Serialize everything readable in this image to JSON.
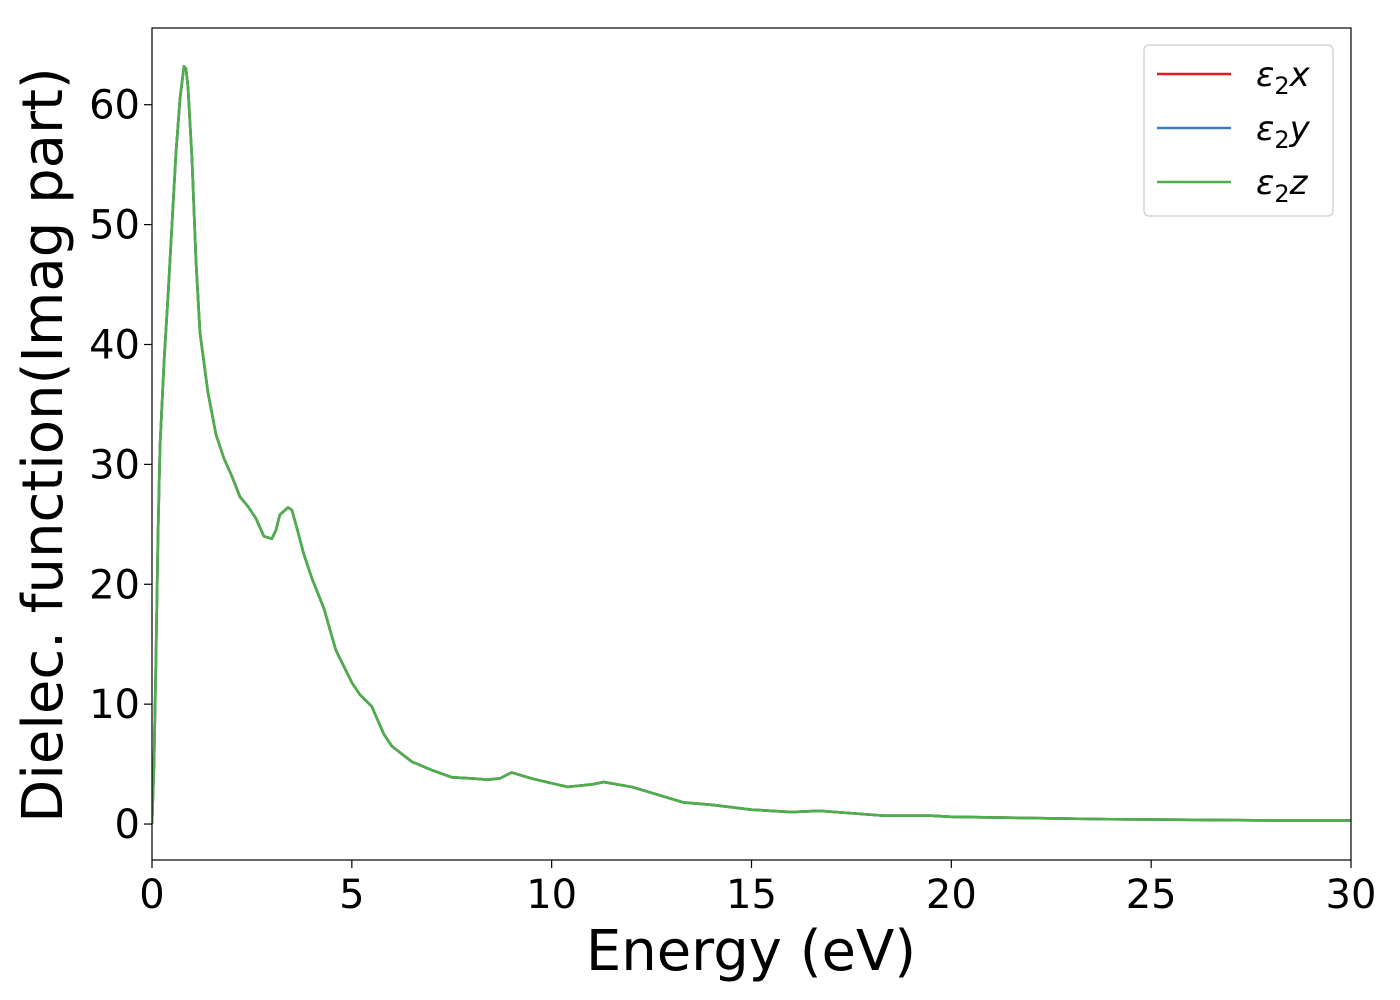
{
  "chart_data": {
    "type": "line",
    "title": "",
    "xlabel": "Energy (eV)",
    "ylabel": "Dielec. function(Imag part)",
    "xlim": [
      0,
      30
    ],
    "ylim": [
      -3,
      66.4
    ],
    "xticks": [
      0,
      5,
      10,
      15,
      20,
      25,
      30
    ],
    "yticks": [
      0,
      10,
      20,
      30,
      40,
      50,
      60
    ],
    "legend_position": "top-right",
    "grid": false,
    "x": [
      0.0,
      0.05,
      0.1,
      0.15,
      0.2,
      0.3,
      0.4,
      0.5,
      0.6,
      0.7,
      0.8,
      0.85,
      0.9,
      1.0,
      1.1,
      1.2,
      1.4,
      1.6,
      1.8,
      2.0,
      2.2,
      2.4,
      2.6,
      2.8,
      3.0,
      3.1,
      3.2,
      3.4,
      3.5,
      3.6,
      3.8,
      4.0,
      4.3,
      4.6,
      5.0,
      5.2,
      5.5,
      5.8,
      6.0,
      6.5,
      7.0,
      7.5,
      8.0,
      8.4,
      8.7,
      9.0,
      9.5,
      10.0,
      10.4,
      11.0,
      11.3,
      12.0,
      12.7,
      13.3,
      14.0,
      15.0,
      16.0,
      16.7,
      17.5,
      18.3,
      19.5,
      20.0,
      22.0,
      24.0,
      26.0,
      28.0,
      30.0
    ],
    "series": [
      {
        "name": "ε2x",
        "color": "#e41a1c",
        "values": [
          0.0,
          5.0,
          14.0,
          24.0,
          31.5,
          38.5,
          44.0,
          50.0,
          56.0,
          60.5,
          63.2,
          63.0,
          61.5,
          55.5,
          47.0,
          41.0,
          36.0,
          32.5,
          30.5,
          29.0,
          27.3,
          26.5,
          25.5,
          24.0,
          23.8,
          24.5,
          25.8,
          26.4,
          26.2,
          25.0,
          22.5,
          20.5,
          18.0,
          14.5,
          11.8,
          10.8,
          9.8,
          7.5,
          6.5,
          5.2,
          4.5,
          3.9,
          3.8,
          3.7,
          3.8,
          4.3,
          3.8,
          3.4,
          3.1,
          3.3,
          3.5,
          3.1,
          2.4,
          1.8,
          1.6,
          1.2,
          1.0,
          1.1,
          0.9,
          0.7,
          0.7,
          0.6,
          0.5,
          0.4,
          0.35,
          0.3,
          0.3
        ]
      },
      {
        "name": "ε2y",
        "color": "#377eb8",
        "values": [
          0.0,
          5.0,
          14.0,
          24.0,
          31.5,
          38.5,
          44.0,
          50.0,
          56.0,
          60.5,
          63.2,
          63.0,
          61.5,
          55.5,
          47.0,
          41.0,
          36.0,
          32.5,
          30.5,
          29.0,
          27.3,
          26.5,
          25.5,
          24.0,
          23.8,
          24.5,
          25.8,
          26.4,
          26.2,
          25.0,
          22.5,
          20.5,
          18.0,
          14.5,
          11.8,
          10.8,
          9.8,
          7.5,
          6.5,
          5.2,
          4.5,
          3.9,
          3.8,
          3.7,
          3.8,
          4.3,
          3.8,
          3.4,
          3.1,
          3.3,
          3.5,
          3.1,
          2.4,
          1.8,
          1.6,
          1.2,
          1.0,
          1.1,
          0.9,
          0.7,
          0.7,
          0.6,
          0.5,
          0.4,
          0.35,
          0.3,
          0.3
        ]
      },
      {
        "name": "ε2z",
        "color": "#4daf4a",
        "values": [
          0.0,
          5.0,
          14.0,
          24.0,
          31.5,
          38.5,
          44.0,
          50.0,
          56.0,
          60.5,
          63.2,
          63.0,
          61.5,
          55.5,
          47.0,
          41.0,
          36.0,
          32.5,
          30.5,
          29.0,
          27.3,
          26.5,
          25.5,
          24.0,
          23.8,
          24.5,
          25.8,
          26.4,
          26.2,
          25.0,
          22.5,
          20.5,
          18.0,
          14.5,
          11.8,
          10.8,
          9.8,
          7.5,
          6.5,
          5.2,
          4.5,
          3.9,
          3.8,
          3.7,
          3.8,
          4.3,
          3.8,
          3.4,
          3.1,
          3.3,
          3.5,
          3.1,
          2.4,
          1.8,
          1.6,
          1.2,
          1.0,
          1.1,
          0.9,
          0.7,
          0.7,
          0.6,
          0.5,
          0.4,
          0.35,
          0.3,
          0.3
        ]
      }
    ]
  }
}
